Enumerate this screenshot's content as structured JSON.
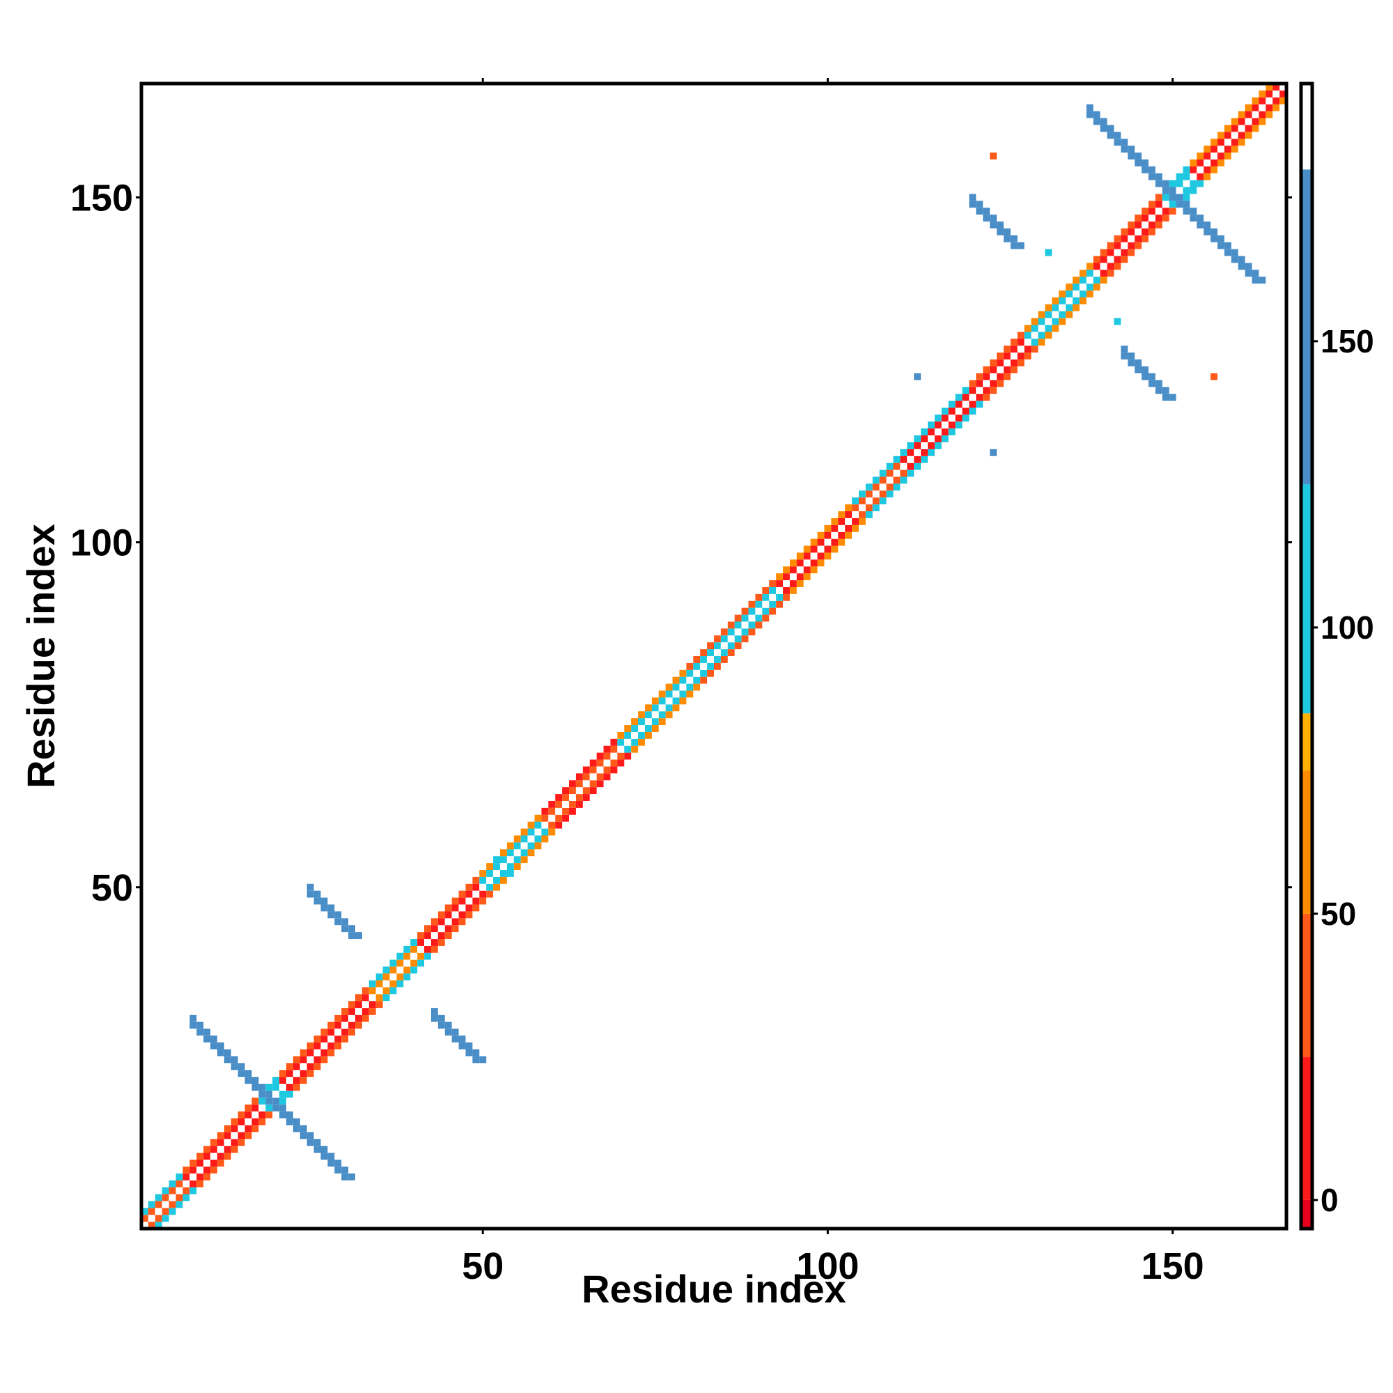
{
  "chart_data": {
    "type": "heatmap",
    "title": "",
    "xlabel": "Residue index",
    "ylabel": "Residue index",
    "xlim": [
      0.5,
      166.5
    ],
    "ylim": [
      0.5,
      166.5
    ],
    "x_ticks": [
      50,
      100,
      150
    ],
    "y_ticks": [
      50,
      100,
      150
    ],
    "grid": false,
    "colorbar": {
      "range": [
        -5,
        195
      ],
      "ticks": [
        0,
        50,
        100,
        150
      ],
      "bands": [
        {
          "from": -5,
          "to": 0,
          "color": "#e8001c"
        },
        {
          "from": 0,
          "to": 25,
          "color": "#ff1a1a"
        },
        {
          "from": 25,
          "to": 50,
          "color": "#ff5a1a"
        },
        {
          "from": 50,
          "to": 75,
          "color": "#ff8c00"
        },
        {
          "from": 75,
          "to": 85,
          "color": "#ffb000"
        },
        {
          "from": 85,
          "to": 125,
          "color": "#1ec8e0"
        },
        {
          "from": 125,
          "to": 180,
          "color": "#4a8ec8"
        },
        {
          "from": 180,
          "to": 195,
          "color": "#ffffff"
        }
      ]
    },
    "diagonal": {
      "start": 1,
      "end": 166,
      "center_value": 190,
      "segments": [
        {
          "from": 1,
          "to": 6,
          "value": 40,
          "helix_value": 105
        },
        {
          "from": 7,
          "to": 17,
          "value": 10,
          "helix_value": 30
        },
        {
          "from": 18,
          "to": 20,
          "value": 100,
          "helix_value": 110
        },
        {
          "from": 21,
          "to": 33,
          "value": 15,
          "helix_value": 40
        },
        {
          "from": 34,
          "to": 40,
          "value": 60,
          "helix_value": 105
        },
        {
          "from": 41,
          "to": 49,
          "value": 10,
          "helix_value": 40
        },
        {
          "from": 50,
          "to": 58,
          "value": 100,
          "helix_value": 60
        },
        {
          "from": 59,
          "to": 69,
          "value": 30,
          "helix_value": 10
        },
        {
          "from": 70,
          "to": 79,
          "value": 105,
          "helix_value": 60
        },
        {
          "from": 80,
          "to": 92,
          "value": 100,
          "helix_value": 40
        },
        {
          "from": 93,
          "to": 103,
          "value": 20,
          "helix_value": 60
        },
        {
          "from": 104,
          "to": 110,
          "value": 30,
          "helix_value": 100
        },
        {
          "from": 111,
          "to": 120,
          "value": 20,
          "helix_value": 105
        },
        {
          "from": 121,
          "to": 128,
          "value": 15,
          "helix_value": 40
        },
        {
          "from": 129,
          "to": 138,
          "value": 105,
          "helix_value": 60
        },
        {
          "from": 139,
          "to": 148,
          "value": 10,
          "helix_value": 40
        },
        {
          "from": 149,
          "to": 152,
          "value": 100,
          "helix_value": 110
        },
        {
          "from": 153,
          "to": 166,
          "value": 20,
          "helix_value": 50
        }
      ]
    },
    "antidiagonal_strands": [
      {
        "cx": 18.5,
        "cy": 18.5,
        "half_length": 11,
        "value": 150
      },
      {
        "cx": 149.5,
        "cy": 149.5,
        "half_length": 12,
        "value": 150
      },
      {
        "cx": 28,
        "cy": 45.5,
        "half_length": 3,
        "value": 150
      },
      {
        "cx": 45.5,
        "cy": 28,
        "half_length": 3,
        "value": 150
      },
      {
        "cx": 124,
        "cy": 146,
        "half_length": 3,
        "value": 150
      },
      {
        "cx": 146,
        "cy": 124,
        "half_length": 3,
        "value": 150
      }
    ],
    "isolated_points": [
      {
        "x": 124,
        "y": 156,
        "value": 45
      },
      {
        "x": 156,
        "y": 124,
        "value": 45
      },
      {
        "x": 113,
        "y": 124,
        "value": 150
      },
      {
        "x": 124,
        "y": 113,
        "value": 150
      },
      {
        "x": 132,
        "y": 142,
        "value": 105
      },
      {
        "x": 142,
        "y": 132,
        "value": 105
      },
      {
        "x": 52,
        "y": 54,
        "value": 105
      },
      {
        "x": 54,
        "y": 52,
        "value": 105
      }
    ]
  }
}
